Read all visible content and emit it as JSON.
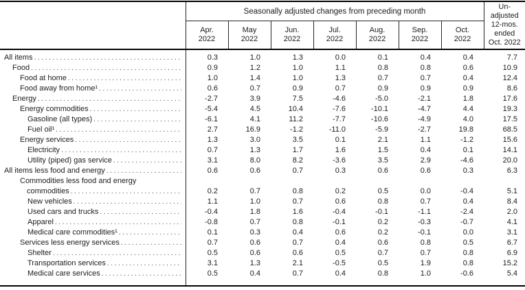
{
  "table": {
    "title_group": "Seasonally adjusted changes from preceding month",
    "unadjusted_header": "Un-\nadjusted\n12-mos.\nended\nOct. 2022",
    "months": [
      "Apr.\n2022",
      "May\n2022",
      "Jun.\n2022",
      "Jul.\n2022",
      "Aug.\n2022",
      "Sep.\n2022",
      "Oct.\n2022"
    ],
    "rows": [
      {
        "label": "All items",
        "indent": 0,
        "values": [
          "0.3",
          "1.0",
          "1.3",
          "0.0",
          "0.1",
          "0.4",
          "0.4",
          "7.7"
        ]
      },
      {
        "label": "Food",
        "indent": 1,
        "values": [
          "0.9",
          "1.2",
          "1.0",
          "1.1",
          "0.8",
          "0.8",
          "0.6",
          "10.9"
        ]
      },
      {
        "label": "Food at home",
        "indent": 2,
        "values": [
          "1.0",
          "1.4",
          "1.0",
          "1.3",
          "0.7",
          "0.7",
          "0.4",
          "12.4"
        ]
      },
      {
        "label": "Food away from home¹",
        "indent": 2,
        "values": [
          "0.6",
          "0.7",
          "0.9",
          "0.7",
          "0.9",
          "0.9",
          "0.9",
          "8.6"
        ]
      },
      {
        "label": "Energy",
        "indent": 1,
        "values": [
          "-2.7",
          "3.9",
          "7.5",
          "-4.6",
          "-5.0",
          "-2.1",
          "1.8",
          "17.6"
        ]
      },
      {
        "label": "Energy commodities",
        "indent": 2,
        "values": [
          "-5.4",
          "4.5",
          "10.4",
          "-7.6",
          "-10.1",
          "-4.7",
          "4.4",
          "19.3"
        ]
      },
      {
        "label": "Gasoline (all types)",
        "indent": 3,
        "values": [
          "-6.1",
          "4.1",
          "11.2",
          "-7.7",
          "-10.6",
          "-4.9",
          "4.0",
          "17.5"
        ]
      },
      {
        "label": "Fuel oil¹",
        "indent": 3,
        "values": [
          "2.7",
          "16.9",
          "-1.2",
          "-11.0",
          "-5.9",
          "-2.7",
          "19.8",
          "68.5"
        ]
      },
      {
        "label": "Energy services",
        "indent": 2,
        "values": [
          "1.3",
          "3.0",
          "3.5",
          "0.1",
          "2.1",
          "1.1",
          "-1.2",
          "15.6"
        ]
      },
      {
        "label": "Electricity",
        "indent": 3,
        "values": [
          "0.7",
          "1.3",
          "1.7",
          "1.6",
          "1.5",
          "0.4",
          "0.1",
          "14.1"
        ]
      },
      {
        "label": "Utility (piped) gas service",
        "indent": 3,
        "values": [
          "3.1",
          "8.0",
          "8.2",
          "-3.6",
          "3.5",
          "2.9",
          "-4.6",
          "20.0"
        ]
      },
      {
        "label": "All items less food and energy",
        "indent": 0,
        "values": [
          "0.6",
          "0.6",
          "0.7",
          "0.3",
          "0.6",
          "0.6",
          "0.3",
          "6.3"
        ]
      },
      {
        "label": "Commodities less food and energy",
        "label2": "commodities",
        "indent": 2,
        "values": [
          "0.2",
          "0.7",
          "0.8",
          "0.2",
          "0.5",
          "0.0",
          "-0.4",
          "5.1"
        ]
      },
      {
        "label": "New vehicles",
        "indent": 3,
        "values": [
          "1.1",
          "1.0",
          "0.7",
          "0.6",
          "0.8",
          "0.7",
          "0.4",
          "8.4"
        ]
      },
      {
        "label": "Used cars and trucks",
        "indent": 3,
        "values": [
          "-0.4",
          "1.8",
          "1.6",
          "-0.4",
          "-0.1",
          "-1.1",
          "-2.4",
          "2.0"
        ]
      },
      {
        "label": "Apparel",
        "indent": 3,
        "values": [
          "-0.8",
          "0.7",
          "0.8",
          "-0.1",
          "0.2",
          "-0.3",
          "-0.7",
          "4.1"
        ]
      },
      {
        "label": "Medical care commodities¹",
        "indent": 3,
        "values": [
          "0.1",
          "0.3",
          "0.4",
          "0.6",
          "0.2",
          "-0.1",
          "0.0",
          "3.1"
        ]
      },
      {
        "label": "Services less energy services",
        "indent": 2,
        "values": [
          "0.7",
          "0.6",
          "0.7",
          "0.4",
          "0.6",
          "0.8",
          "0.5",
          "6.7"
        ]
      },
      {
        "label": "Shelter",
        "indent": 3,
        "values": [
          "0.5",
          "0.6",
          "0.6",
          "0.5",
          "0.7",
          "0.7",
          "0.8",
          "6.9"
        ]
      },
      {
        "label": "Transportation services",
        "indent": 3,
        "values": [
          "3.1",
          "1.3",
          "2.1",
          "-0.5",
          "0.5",
          "1.9",
          "0.8",
          "15.2"
        ]
      },
      {
        "label": "Medical care services",
        "indent": 3,
        "values": [
          "0.5",
          "0.4",
          "0.7",
          "0.4",
          "0.8",
          "1.0",
          "-0.6",
          "5.4"
        ]
      }
    ]
  }
}
